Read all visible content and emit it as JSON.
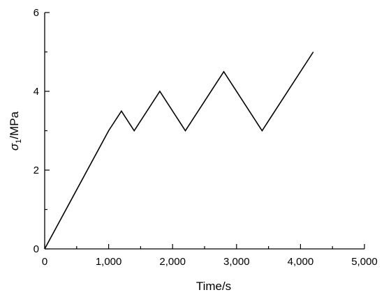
{
  "chart_data": {
    "type": "line",
    "title": "",
    "xlabel": "Time/s",
    "ylabel_symbol": "σ",
    "ylabel_subscript": "1",
    "ylabel_unit": "/MPa",
    "xlim": [
      0,
      5000
    ],
    "ylim": [
      0,
      6
    ],
    "x_ticks": [
      0,
      1000,
      2000,
      3000,
      4000,
      5000
    ],
    "x_tick_labels": [
      "0",
      "1,000",
      "2,000",
      "3,000",
      "4,000",
      "5,000"
    ],
    "y_ticks": [
      0,
      2,
      4,
      6
    ],
    "y_tick_labels": [
      "0",
      "2",
      "4",
      "6"
    ],
    "grid": false,
    "line_color": "#000000",
    "series": [
      {
        "x": [
          0,
          1000,
          1200,
          1400,
          1800,
          2200,
          2800,
          3400,
          4200
        ],
        "y": [
          0,
          3.0,
          3.5,
          3.0,
          4.0,
          3.0,
          4.5,
          3.0,
          5.0
        ]
      }
    ]
  }
}
